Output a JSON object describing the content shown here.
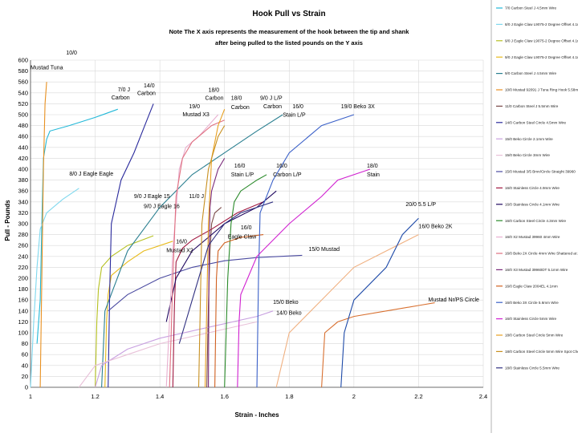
{
  "chart_data": {
    "type": "line",
    "title": "Hook Pull vs Strain",
    "note_lines": [
      "Note The X axis represents the measurement of the hook between the tip and shank",
      "after being pulled to the listed pounds on the Y axis"
    ],
    "xlabel": "Strain - Inches",
    "ylabel": "Pull - Pounds",
    "xlim": [
      1,
      2.4
    ],
    "ylim": [
      0,
      600
    ],
    "x_ticks": [
      1,
      1.2,
      1.4,
      1.6,
      1.8,
      2,
      2.2,
      2.4
    ],
    "x_tick_labels": [
      "1",
      "1.2",
      "1.4",
      "1.6",
      "1.8",
      "2",
      "2.2",
      "2.4"
    ],
    "y_ticks": [
      0,
      20,
      40,
      60,
      80,
      100,
      120,
      140,
      160,
      180,
      200,
      220,
      240,
      260,
      280,
      300,
      320,
      340,
      360,
      380,
      400,
      420,
      440,
      460,
      480,
      500,
      520,
      540,
      560,
      580,
      600
    ],
    "y_tick_labels": [
      "0",
      "20",
      "40",
      "60",
      "80",
      "100",
      "120",
      "140",
      "160",
      "180",
      "200",
      "220",
      "240",
      "260",
      "280",
      "300",
      "320",
      "340",
      "360",
      "380",
      "400",
      "420",
      "440",
      "460",
      "480",
      "500",
      "520",
      "540",
      "560",
      "580",
      "600"
    ],
    "grid": true,
    "legend_position": "right",
    "series": [
      {
        "name": "7/0 Carbon Steel J 4.5mm Wire",
        "color": "#22b8d8",
        "x": [
          1.02,
          1.03,
          1.035,
          1.04,
          1.05,
          1.06,
          1.12,
          1.2,
          1.27
        ],
        "y": [
          80,
          160,
          300,
          420,
          455,
          470,
          480,
          495,
          510
        ]
      },
      {
        "name": "8/0 J Eagle Claw L9075-2 Degree Offset 4.1mm",
        "color": "#7fd8ee",
        "x": [
          1.0,
          1.01,
          1.02,
          1.03,
          1.05,
          1.1,
          1.15
        ],
        "y": [
          0,
          120,
          220,
          290,
          320,
          345,
          365
        ]
      },
      {
        "name": "9/0 J Eagle Claw L9075-2 Degree Offset 4.1mm",
        "color": "#b5c020",
        "x": [
          1.2,
          1.205,
          1.21,
          1.22,
          1.25,
          1.3,
          1.38
        ],
        "y": [
          0,
          120,
          180,
          220,
          240,
          260,
          278
        ]
      },
      {
        "name": "9/0 J Eagle Claw L9075-2 Degree Offset 4.1mm",
        "color": "#e8bb1c",
        "x": [
          1.23,
          1.235,
          1.24,
          1.25,
          1.3,
          1.35,
          1.44
        ],
        "y": [
          0,
          120,
          170,
          205,
          230,
          250,
          268
        ]
      },
      {
        "name": "9/0 Carbon Steel J 4.5mm Wire",
        "color": "#2a7f90",
        "x": [
          1.22,
          1.23,
          1.3,
          1.4,
          1.5,
          1.6,
          1.7,
          1.78
        ],
        "y": [
          0,
          140,
          250,
          330,
          390,
          430,
          470,
          500
        ]
      },
      {
        "name": "10/0 Mustad 92091 J Tuna Ring Hook 5.58mm",
        "color": "#e89020",
        "x": [
          1.03,
          1.035,
          1.04,
          1.045,
          1.05
        ],
        "y": [
          0,
          200,
          400,
          520,
          560
        ]
      },
      {
        "name": "11/0 Carbon Steel J 5.5mm Wire",
        "color": "#7a4a48",
        "x": [
          1.545,
          1.55,
          1.555,
          1.56,
          1.57,
          1.59
        ],
        "y": [
          0,
          150,
          250,
          300,
          320,
          330
        ]
      },
      {
        "name": "14/0 Carbon Steel Circle 4.5mm Wire",
        "color": "#2a2a9c",
        "x": [
          1.24,
          1.245,
          1.25,
          1.28,
          1.32,
          1.36,
          1.38
        ],
        "y": [
          0,
          180,
          300,
          380,
          430,
          490,
          520
        ]
      },
      {
        "name": "15/0 Beko Circle 2.1mm Wire",
        "color": "#c8a0e0",
        "x": [
          1.2,
          1.22,
          1.3,
          1.4,
          1.55,
          1.7,
          1.75
        ],
        "y": [
          0,
          40,
          70,
          90,
          110,
          130,
          140
        ]
      },
      {
        "name": "15/0 Beko Circle 3mm Wire",
        "color": "#e8c0d8",
        "x": [
          1.15,
          1.2,
          1.3,
          1.4,
          1.55,
          1.7
        ],
        "y": [
          0,
          40,
          60,
          80,
          100,
          120
        ]
      },
      {
        "name": "15/0 Mustad 3/5 Bmn/Circle Straight 39960",
        "color": "#4a4aa0",
        "x": [
          1.24,
          1.3,
          1.4,
          1.5,
          1.6,
          1.7,
          1.84
        ],
        "y": [
          140,
          170,
          200,
          220,
          232,
          238,
          242
        ]
      },
      {
        "name": "16/0 Stainless Circle 4.9mm Wire",
        "color": "#a01840",
        "x": [
          1.44,
          1.445,
          1.45,
          1.47,
          1.5,
          1.56,
          1.64,
          1.72
        ],
        "y": [
          0,
          150,
          230,
          255,
          270,
          290,
          320,
          340
        ]
      },
      {
        "name": "16/0 Stainless Circle 4.1mm Wire",
        "color": "#200860",
        "x": [
          1.42,
          1.45,
          1.5,
          1.6,
          1.7,
          1.76
        ],
        "y": [
          120,
          200,
          250,
          300,
          330,
          360
        ]
      },
      {
        "name": "16/0 Carbon Steel Circle 4.3mm Wire",
        "color": "#2a8a2a",
        "x": [
          1.6,
          1.61,
          1.62,
          1.63,
          1.65,
          1.7,
          1.73
        ],
        "y": [
          0,
          200,
          300,
          340,
          360,
          380,
          390
        ]
      },
      {
        "name": "16/0 X2 Mustad 39960 4mm Wire",
        "color": "#e8b0d0",
        "x": [
          1.42,
          1.44,
          1.46,
          1.48,
          1.52,
          1.58
        ],
        "y": [
          0,
          250,
          400,
          440,
          460,
          500
        ]
      },
      {
        "name": "16/0 Beko 2X Circle 4mm Wire Shattered at 2Klbs",
        "color": "#e07080",
        "x": [
          1.43,
          1.44,
          1.45,
          1.47,
          1.5,
          1.56,
          1.6
        ],
        "y": [
          0,
          200,
          350,
          420,
          450,
          480,
          490
        ]
      },
      {
        "name": "16/0 X3 Mustad 39960DT 5.1mm Wire",
        "color": "#7a2a7a",
        "x": [
          1.55,
          1.552,
          1.555,
          1.56,
          1.58,
          1.6
        ],
        "y": [
          0,
          240,
          330,
          360,
          400,
          420
        ]
      },
      {
        "name": "16/0 Eagle Claw 2004EL 4.1mm",
        "color": "#d06020",
        "x": [
          1.57,
          1.575,
          1.58,
          1.6,
          1.65,
          1.72
        ],
        "y": [
          0,
          200,
          250,
          265,
          275,
          280
        ]
      },
      {
        "name": "16/0 Beko 3X Circle 5.6mm Wire",
        "color": "#3a60c8",
        "x": [
          1.7,
          1.705,
          1.71,
          1.75,
          1.8,
          1.9,
          2.0
        ],
        "y": [
          0,
          200,
          320,
          380,
          430,
          480,
          500
        ]
      },
      {
        "name": "16/0 Stainless Circle 5mm Wire",
        "color": "#d020d0",
        "x": [
          1.64,
          1.645,
          1.65,
          1.7,
          1.8,
          1.9,
          1.95,
          2.05
        ],
        "y": [
          0,
          120,
          170,
          240,
          300,
          350,
          380,
          400
        ]
      },
      {
        "name": "18/0 Carbon Steel Circle 5mm Wire",
        "color": "#e8a020",
        "x": [
          1.54,
          1.545,
          1.55,
          1.56,
          1.58,
          1.6
        ],
        "y": [
          0,
          150,
          300,
          420,
          480,
          510
        ]
      },
      {
        "name": "18/0 Carbon Steel Circle 5mm Wire Spot Check",
        "color": "#c89020",
        "x": [
          1.52,
          1.525,
          1.53,
          1.55,
          1.58,
          1.6
        ],
        "y": [
          0,
          150,
          300,
          400,
          460,
          480
        ]
      },
      {
        "name": "18/0 Stainless Circle 5.5mm Wire",
        "color": "#303080",
        "x": [
          1.46,
          1.5,
          1.55,
          1.6,
          1.65,
          1.7,
          1.75
        ],
        "y": [
          80,
          160,
          260,
          300,
          320,
          330,
          340
        ]
      },
      {
        "name": "",
        "color": "#f0b080",
        "x": [
          1.76,
          1.8,
          1.9,
          2.0,
          2.1,
          2.2
        ],
        "y": [
          0,
          100,
          160,
          220,
          250,
          280
        ]
      },
      {
        "name": "",
        "color": "#d87030",
        "x": [
          1.9,
          1.91,
          1.95,
          2.0,
          2.1,
          2.2,
          2.25
        ],
        "y": [
          0,
          100,
          120,
          130,
          140,
          150,
          155
        ]
      },
      {
        "name": "",
        "color": "#1e4aa8",
        "x": [
          1.96,
          1.97,
          2.0,
          2.1,
          2.15,
          2.2
        ],
        "y": [
          0,
          100,
          160,
          220,
          280,
          310
        ]
      }
    ],
    "annotations": [
      {
        "text": "10/0",
        "x": 1.11,
        "y": 610
      },
      {
        "text": "Mustad Tuna",
        "x": 1.0,
        "y": 583
      },
      {
        "text": "7/0 J",
        "x": 1.27,
        "y": 543
      },
      {
        "text": "Carbon",
        "x": 1.25,
        "y": 528
      },
      {
        "text": "14/0",
        "x": 1.35,
        "y": 550
      },
      {
        "text": "Carbon",
        "x": 1.33,
        "y": 536
      },
      {
        "text": "18/0",
        "x": 1.55,
        "y": 542
      },
      {
        "text": "Carbon",
        "x": 1.54,
        "y": 527
      },
      {
        "text": "19/0",
        "x": 1.49,
        "y": 512
      },
      {
        "text": "Mustad X3",
        "x": 1.47,
        "y": 497
      },
      {
        "text": "18/0",
        "x": 1.62,
        "y": 527
      },
      {
        "text": "Carbon",
        "x": 1.62,
        "y": 510
      },
      {
        "text": "9/0 J L/P",
        "x": 1.71,
        "y": 527
      },
      {
        "text": "Carbon",
        "x": 1.72,
        "y": 512
      },
      {
        "text": "16/0",
        "x": 1.81,
        "y": 512
      },
      {
        "text": "Stain L/P",
        "x": 1.78,
        "y": 496
      },
      {
        "text": "19/0 Beko 3X",
        "x": 1.96,
        "y": 512
      },
      {
        "text": "8/0 J Eagle Eagle",
        "x": 1.12,
        "y": 388
      },
      {
        "text": "16/0",
        "x": 1.63,
        "y": 403
      },
      {
        "text": "Stain L/P",
        "x": 1.62,
        "y": 387
      },
      {
        "text": "16/0",
        "x": 1.76,
        "y": 403
      },
      {
        "text": "Carbon L/P",
        "x": 1.75,
        "y": 387
      },
      {
        "text": "18/0",
        "x": 2.04,
        "y": 403
      },
      {
        "text": "Stain",
        "x": 2.04,
        "y": 387
      },
      {
        "text": "9/0 J Eagle 15",
        "x": 1.32,
        "y": 347
      },
      {
        "text": "9/0 J Eagle 16",
        "x": 1.35,
        "y": 329
      },
      {
        "text": "11/0 J",
        "x": 1.49,
        "y": 347
      },
      {
        "text": "20/0 5.5 L/P",
        "x": 2.16,
        "y": 332
      },
      {
        "text": "16/0",
        "x": 1.65,
        "y": 290
      },
      {
        "text": "Eagle Claw",
        "x": 1.61,
        "y": 273
      },
      {
        "text": "16/0 Beko 2K",
        "x": 2.2,
        "y": 292
      },
      {
        "text": "16/0",
        "x": 1.45,
        "y": 264
      },
      {
        "text": "Mustad X2",
        "x": 1.42,
        "y": 248
      },
      {
        "text": "15/0 Mustad",
        "x": 1.86,
        "y": 250
      },
      {
        "text": "Mustad Nr/PS Circle",
        "x": 2.23,
        "y": 157
      },
      {
        "text": "15/0 Beko",
        "x": 1.75,
        "y": 153
      },
      {
        "text": "14/0 Beko",
        "x": 1.76,
        "y": 133
      }
    ]
  }
}
